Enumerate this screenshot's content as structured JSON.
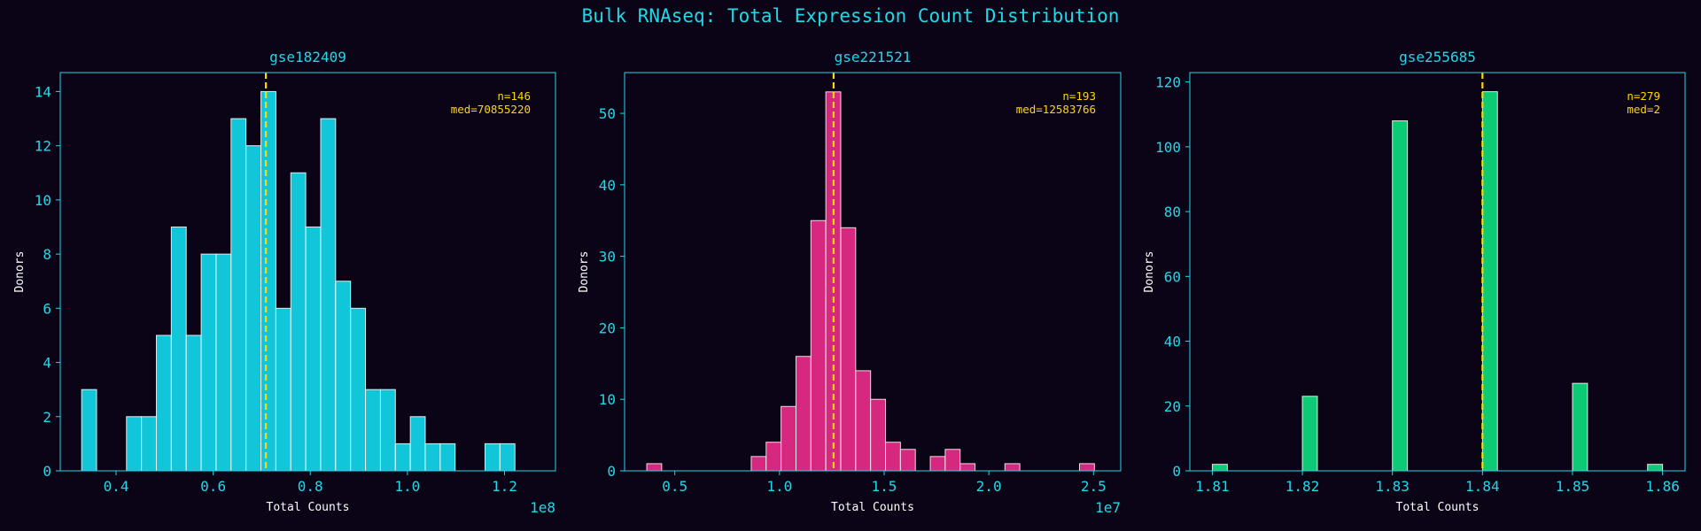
{
  "suptitle": "Bulk RNAseq: Total Expression Count Distribution",
  "theme": {
    "background": "#0a0416",
    "accent": "#22d8e8",
    "median_line": "#ffd700",
    "annotation": "#ffd700",
    "label_color": "#ffffff"
  },
  "chart_data": [
    {
      "type": "bar",
      "title": "gse182409",
      "xlabel": "Total Counts",
      "ylabel": "Donors",
      "offset_label": "1e8",
      "color": "#12c6da",
      "xlim": [
        0.285,
        1.305
      ],
      "ylim": [
        0,
        14.7
      ],
      "xticks": [
        0.4,
        0.6,
        0.8,
        1.0,
        1.2
      ],
      "xtick_labels": [
        "0.4",
        "0.6",
        "0.8",
        "1.0",
        "1.2"
      ],
      "yticks": [
        0,
        2,
        4,
        6,
        8,
        10,
        12,
        14
      ],
      "ytick_labels": [
        "0",
        "2",
        "4",
        "6",
        "8",
        "10",
        "12",
        "14"
      ],
      "bin_start": 0.3291,
      "bin_width": 0.03077,
      "values": [
        3,
        0,
        0,
        2,
        2,
        5,
        9,
        5,
        8,
        8,
        13,
        12,
        14,
        6,
        11,
        9,
        13,
        7,
        6,
        3,
        3,
        1,
        2,
        1,
        1,
        0,
        0,
        1,
        1,
        0
      ],
      "median": 0.70855,
      "annotation": [
        "n=146",
        "med=70855220"
      ]
    },
    {
      "type": "bar",
      "title": "gse221521",
      "xlabel": "Total Counts",
      "ylabel": "Donors",
      "offset_label": "1e7",
      "color": "#d6287e",
      "xlim": [
        0.26,
        2.63
      ],
      "ylim": [
        0,
        55.7
      ],
      "xticks": [
        0.5,
        1.0,
        1.5,
        2.0,
        2.5
      ],
      "xtick_labels": [
        "0.5",
        "1.0",
        "1.5",
        "2.0",
        "2.5"
      ],
      "yticks": [
        0,
        10,
        20,
        30,
        40,
        50
      ],
      "ytick_labels": [
        "0",
        "10",
        "20",
        "30",
        "40",
        "50"
      ],
      "bin_start": 0.366,
      "bin_width": 0.07128,
      "values": [
        1,
        0,
        0,
        0,
        0,
        0,
        0,
        2,
        4,
        9,
        16,
        35,
        53,
        34,
        14,
        10,
        4,
        3,
        0,
        2,
        3,
        1,
        0,
        0,
        1,
        0,
        0,
        0,
        0,
        1
      ],
      "median": 1.2584,
      "annotation": [
        "n=193",
        "med=12583766"
      ]
    },
    {
      "type": "bar",
      "title": "gse255685",
      "xlabel": "Total Counts",
      "ylabel": "Donors",
      "offset_label": "",
      "color": "#0ccb74",
      "xlim": [
        1.8075,
        1.8625
      ],
      "ylim": [
        0,
        122.9
      ],
      "xticks": [
        1.81,
        1.82,
        1.83,
        1.84,
        1.85,
        1.86
      ],
      "xtick_labels": [
        "1.81",
        "1.82",
        "1.83",
        "1.84",
        "1.85",
        "1.86"
      ],
      "yticks": [
        0,
        20,
        40,
        60,
        80,
        100,
        120
      ],
      "ytick_labels": [
        "0",
        "20",
        "40",
        "60",
        "80",
        "100",
        "120"
      ],
      "bin_start": 1.81,
      "bin_width": 0.0016667,
      "values": [
        2,
        0,
        0,
        0,
        0,
        0,
        23,
        0,
        0,
        0,
        0,
        0,
        108,
        0,
        0,
        0,
        0,
        0,
        117,
        0,
        0,
        0,
        0,
        0,
        27,
        0,
        0,
        0,
        0,
        2
      ],
      "median": 1.84,
      "annotation": [
        "n=279",
        "med=2"
      ]
    }
  ]
}
